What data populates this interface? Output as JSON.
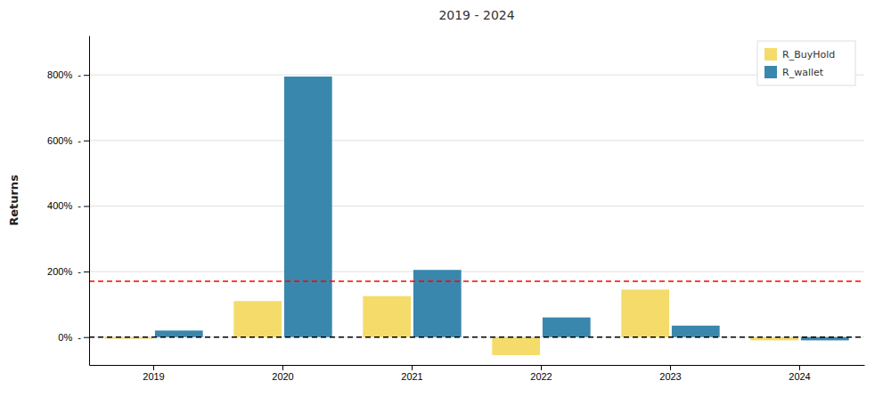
{
  "chart_data": {
    "type": "bar",
    "title": "2019 - 2024",
    "ylabel": "Returns",
    "categories": [
      "2019",
      "2020",
      "2021",
      "2022",
      "2023",
      "2024"
    ],
    "series": [
      {
        "name": "R_BuyHold",
        "color": "#F5DC6A",
        "values": [
          -0.05,
          1.1,
          1.25,
          -0.55,
          1.45,
          -0.1
        ]
      },
      {
        "name": "R_wallet",
        "color": "#3A87AD",
        "values": [
          0.2,
          7.95,
          2.05,
          0.6,
          0.35,
          -0.1
        ]
      }
    ],
    "hlines": [
      {
        "value": 0.0,
        "color": "black",
        "line_style": "dashed"
      },
      {
        "value": 1.7,
        "color": "red",
        "line_style": "dashed"
      }
    ],
    "ylim": [
      -0.85,
      9.2
    ],
    "yticks": [
      {
        "value": 0.0,
        "label": "0%  -"
      },
      {
        "value": 2.0,
        "label": "200%  -"
      },
      {
        "value": 4.0,
        "label": "400%  -"
      },
      {
        "value": 6.0,
        "label": "600%  -"
      },
      {
        "value": 8.0,
        "label": "800%  -"
      }
    ],
    "grid": true,
    "legend": "upper right"
  }
}
